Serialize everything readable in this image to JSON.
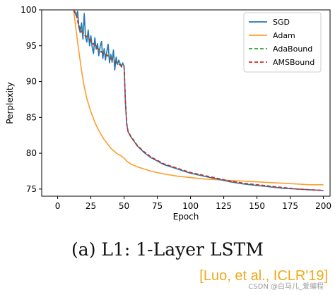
{
  "chart_data": {
    "type": "line",
    "xlabel": "Epoch",
    "ylabel": "Perplexity",
    "xlim": [
      -12,
      205
    ],
    "ylim": [
      74,
      100
    ],
    "xticks": [
      0,
      25,
      50,
      75,
      100,
      125,
      150,
      175,
      200
    ],
    "yticks": [
      75,
      80,
      85,
      90,
      95,
      100
    ],
    "legend_position": "top-right",
    "series": [
      {
        "name": "SGD",
        "color": "#1f77b4",
        "dash": "solid",
        "x": [
          12,
          14,
          15,
          16,
          17,
          18,
          19,
          20,
          21,
          22,
          23,
          24,
          25,
          26,
          27,
          28,
          29,
          30,
          31,
          32,
          33,
          34,
          35,
          36,
          37,
          38,
          39,
          40,
          41,
          42,
          43,
          44,
          45,
          46,
          47,
          48,
          49,
          50,
          51,
          52,
          53,
          55,
          57,
          60,
          65,
          70,
          75,
          80,
          90,
          100,
          110,
          120,
          130,
          140,
          150,
          160,
          170,
          180,
          190,
          200
        ],
        "y": [
          100,
          99.2,
          99.8,
          97.6,
          96.8,
          98.2,
          95.9,
          99.5,
          96.2,
          95.5,
          97.2,
          95.0,
          96.4,
          94.8,
          93.9,
          96.1,
          94.5,
          95.3,
          93.6,
          94.9,
          95.6,
          93.2,
          94.6,
          93.0,
          94.2,
          95.2,
          92.6,
          93.8,
          92.7,
          94.4,
          91.6,
          93.4,
          92.4,
          93.0,
          92.5,
          92.0,
          92.6,
          92.1,
          87.0,
          84.0,
          83.0,
          82.3,
          81.8,
          81.0,
          80.1,
          79.4,
          78.9,
          78.4,
          77.8,
          77.2,
          76.8,
          76.4,
          76.0,
          75.7,
          75.5,
          75.3,
          75.1,
          75.0,
          74.9,
          74.8
        ]
      },
      {
        "name": "Adam",
        "color": "#ff9d2e",
        "dash": "solid",
        "x": [
          12,
          15,
          18,
          20,
          22,
          25,
          28,
          30,
          33,
          35,
          38,
          40,
          43,
          45,
          48,
          50,
          52,
          55,
          60,
          70,
          80,
          90,
          100,
          110,
          120,
          130,
          140,
          150,
          160,
          170,
          180,
          190,
          200
        ],
        "y": [
          100,
          95.5,
          91.5,
          89.3,
          87.6,
          85.8,
          84.3,
          83.5,
          82.5,
          81.9,
          81.2,
          80.7,
          80.2,
          79.9,
          79.6,
          79.3,
          78.9,
          78.5,
          78.1,
          77.5,
          77.1,
          76.8,
          76.6,
          76.4,
          76.3,
          76.2,
          76.1,
          76.0,
          75.9,
          75.8,
          75.7,
          75.6,
          75.6
        ]
      },
      {
        "name": "AdaBound",
        "color": "#2ca02c",
        "dash": "dashed",
        "x": [
          12,
          14,
          16,
          18,
          20,
          22,
          24,
          26,
          28,
          30,
          32,
          34,
          36,
          38,
          40,
          42,
          44,
          46,
          48,
          50,
          51,
          52,
          53,
          55,
          57,
          60,
          65,
          70,
          75,
          80,
          90,
          100,
          110,
          120,
          130,
          140,
          150,
          160,
          170,
          180,
          190,
          200
        ],
        "y": [
          100,
          99.5,
          97.8,
          97.2,
          96.6,
          96.3,
          95.9,
          95.5,
          95.1,
          94.7,
          94.3,
          94.1,
          93.9,
          93.6,
          93.3,
          93.0,
          92.7,
          92.5,
          92.3,
          92.2,
          87.1,
          84.2,
          83.1,
          82.4,
          81.9,
          81.1,
          80.2,
          79.5,
          79.0,
          78.5,
          77.9,
          77.3,
          76.9,
          76.5,
          76.1,
          75.8,
          75.6,
          75.4,
          75.2,
          75.0,
          74.9,
          74.8
        ]
      },
      {
        "name": "AMSBound",
        "color": "#d62728",
        "dash": "dashed",
        "x": [
          12,
          14,
          16,
          18,
          20,
          22,
          24,
          26,
          28,
          30,
          32,
          34,
          36,
          38,
          40,
          42,
          44,
          46,
          48,
          50,
          51,
          52,
          53,
          55,
          57,
          60,
          65,
          70,
          75,
          80,
          90,
          100,
          110,
          120,
          130,
          140,
          150,
          160,
          170,
          180,
          190,
          200
        ],
        "y": [
          100,
          99.4,
          97.6,
          97.0,
          96.5,
          96.2,
          95.8,
          95.4,
          95.0,
          94.6,
          94.2,
          94.0,
          93.8,
          93.5,
          93.2,
          92.9,
          92.6,
          92.4,
          92.2,
          92.1,
          87.0,
          84.1,
          83.0,
          82.3,
          81.8,
          81.0,
          80.2,
          79.5,
          79.0,
          78.5,
          77.9,
          77.3,
          76.9,
          76.5,
          76.1,
          75.8,
          75.6,
          75.4,
          75.2,
          75.0,
          74.9,
          74.8
        ]
      }
    ]
  },
  "caption": "(a) L1:  1-Layer LSTM",
  "citation": "[Luo, et al., ICLR'19]",
  "watermark": "CSDN @白马儿_爱编程"
}
